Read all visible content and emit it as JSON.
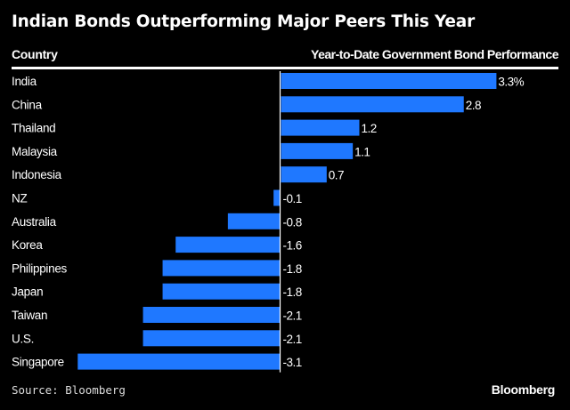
{
  "chart_data": {
    "type": "bar",
    "orientation": "horizontal",
    "title": "Indian Bonds Outperforming Major Peers This Year",
    "category_header": "Country",
    "value_header": "Year-to-Date Government Bond Performance",
    "categories": [
      "India",
      "China",
      "Thailand",
      "Malaysia",
      "Indonesia",
      "NZ",
      "Australia",
      "Korea",
      "Philippines",
      "Japan",
      "Taiwan",
      "U.S.",
      "Singapore"
    ],
    "values": [
      3.3,
      2.8,
      1.2,
      1.1,
      0.7,
      -0.1,
      -0.8,
      -1.6,
      -1.8,
      -1.8,
      -2.1,
      -2.1,
      -3.1
    ],
    "data_labels": [
      "3.3%",
      "2.8",
      "1.2",
      "1.1",
      "0.7",
      "-0.1",
      "-0.8",
      "-1.6",
      "-1.8",
      "-1.8",
      "-2.1",
      "-2.1",
      "-3.1"
    ],
    "unit": "%",
    "grid": false,
    "bar_color": "#1f78ff",
    "background": "#000000"
  },
  "footer": {
    "source": "Source: Bloomberg",
    "logo": "Bloomberg"
  }
}
